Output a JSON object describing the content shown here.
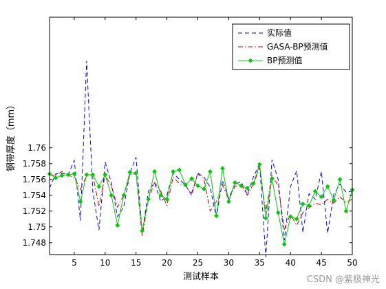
{
  "chart_data": {
    "type": "line",
    "title": "",
    "xlabel": "测试样本",
    "ylabel": "钢带厚度（mm）",
    "xlim": [
      1,
      50
    ],
    "ylim": [
      1.7465,
      1.7765
    ],
    "xticks": [
      5,
      10,
      15,
      20,
      25,
      30,
      35,
      40,
      45,
      50
    ],
    "yticks": [
      1.748,
      1.75,
      1.752,
      1.754,
      1.756,
      1.758,
      1.76
    ],
    "ytick_labels": [
      "1.748",
      "1.75",
      "1.752",
      "1.754",
      "1.756",
      "1.758",
      "1.76"
    ],
    "grid": false,
    "legend_position": "top-right",
    "x": [
      1,
      2,
      3,
      4,
      5,
      6,
      7,
      8,
      9,
      10,
      11,
      12,
      13,
      14,
      15,
      16,
      17,
      18,
      19,
      20,
      21,
      22,
      23,
      24,
      25,
      26,
      27,
      28,
      29,
      30,
      31,
      32,
      33,
      34,
      35,
      36,
      37,
      38,
      39,
      40,
      41,
      42,
      43,
      44,
      45,
      46,
      47,
      48,
      49,
      50
    ],
    "series": [
      {
        "name": "实际值",
        "color": "#0000ff",
        "dash": "dashed",
        "marker": "none",
        "values": [
          1.7549,
          1.7567,
          1.7568,
          1.7566,
          1.7584,
          1.7508,
          1.771,
          1.7545,
          1.7496,
          1.7582,
          1.7556,
          1.7513,
          1.7525,
          1.7568,
          1.7588,
          1.7493,
          1.7545,
          1.7556,
          1.7532,
          1.754,
          1.7568,
          1.756,
          1.7553,
          1.754,
          1.7568,
          1.7563,
          1.755,
          1.7512,
          1.7559,
          1.7536,
          1.7554,
          1.7557,
          1.7541,
          1.7563,
          1.758,
          1.7462,
          1.7585,
          1.756,
          1.7483,
          1.7551,
          1.7571,
          1.7493,
          1.7542,
          1.7535,
          1.757,
          1.7492,
          1.7541,
          1.7554,
          1.7544,
          1.7545
        ]
      },
      {
        "name": "GASA-BP预测值",
        "color": "#cc0000",
        "dash": "dashdot",
        "marker": "none",
        "values": [
          1.7566,
          1.7565,
          1.757,
          1.7565,
          1.7563,
          1.7547,
          1.7565,
          1.7566,
          1.7526,
          1.7565,
          1.7552,
          1.7525,
          1.754,
          1.7566,
          1.7567,
          1.7488,
          1.7535,
          1.7556,
          1.7545,
          1.7527,
          1.7563,
          1.7555,
          1.7552,
          1.7543,
          1.7567,
          1.756,
          1.752,
          1.7532,
          1.7553,
          1.7534,
          1.7551,
          1.7554,
          1.754,
          1.7554,
          1.7575,
          1.7519,
          1.7565,
          1.7552,
          1.7497,
          1.7516,
          1.7502,
          1.7518,
          1.7524,
          1.753,
          1.7528,
          1.7535,
          1.753,
          1.7538,
          1.7531,
          1.7535
        ]
      },
      {
        "name": "BP预测值",
        "color": "#00cc00",
        "dash": "solid",
        "marker": "diamond",
        "values": [
          1.7567,
          1.7562,
          1.7565,
          1.7566,
          1.7567,
          1.7532,
          1.7566,
          1.7566,
          1.7551,
          1.7566,
          1.754,
          1.7502,
          1.754,
          1.7569,
          1.7568,
          1.7495,
          1.7535,
          1.757,
          1.754,
          1.7535,
          1.757,
          1.7572,
          1.7553,
          1.7561,
          1.7552,
          1.7548,
          1.757,
          1.7514,
          1.7574,
          1.7532,
          1.7556,
          1.7552,
          1.7549,
          1.7555,
          1.7579,
          1.7511,
          1.7561,
          1.7518,
          1.7478,
          1.7513,
          1.751,
          1.7529,
          1.7527,
          1.7545,
          1.7538,
          1.7551,
          1.7534,
          1.756,
          1.752,
          1.7547
        ]
      }
    ]
  },
  "watermark": "CSDN @紫极神光"
}
